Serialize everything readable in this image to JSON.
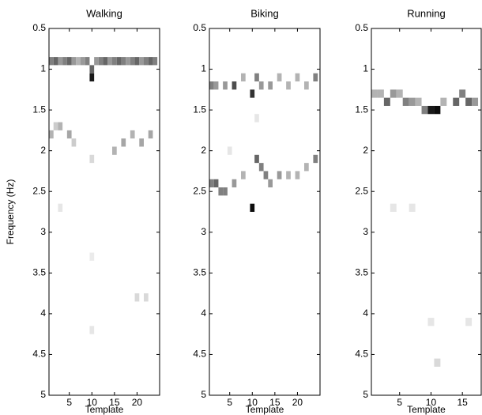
{
  "chart_data": [
    {
      "type": "heatmap",
      "title": "Walking",
      "xlabel": "Template",
      "ylabel": "Frequency (Hz)",
      "colormap": "gray_r",
      "x": [
        1,
        2,
        3,
        4,
        5,
        6,
        7,
        8,
        9,
        10,
        10,
        11,
        12,
        13,
        14,
        15,
        16,
        17,
        18,
        19,
        20,
        21,
        22,
        23,
        24,
        1,
        2,
        3,
        5,
        6,
        10,
        15,
        17,
        19,
        21,
        23,
        3,
        10,
        20,
        22,
        10
      ],
      "y": [
        0.9,
        0.9,
        0.9,
        0.9,
        0.9,
        0.9,
        0.9,
        0.9,
        0.9,
        1.1,
        1.0,
        0.9,
        0.9,
        0.9,
        0.9,
        0.9,
        0.9,
        0.9,
        0.9,
        0.9,
        0.9,
        0.9,
        0.9,
        0.9,
        0.9,
        1.8,
        1.7,
        1.7,
        1.8,
        1.9,
        2.1,
        2.0,
        1.9,
        1.8,
        1.9,
        1.8,
        2.7,
        3.3,
        3.8,
        3.8,
        4.2
      ],
      "values": [
        0.5,
        0.6,
        0.4,
        0.5,
        0.6,
        0.4,
        0.3,
        0.4,
        0.5,
        0.9,
        0.6,
        0.4,
        0.5,
        0.6,
        0.4,
        0.5,
        0.6,
        0.5,
        0.4,
        0.5,
        0.6,
        0.4,
        0.5,
        0.6,
        0.5,
        0.3,
        0.2,
        0.3,
        0.35,
        0.2,
        0.15,
        0.3,
        0.35,
        0.3,
        0.35,
        0.35,
        0.1,
        0.08,
        0.15,
        0.15,
        0.1
      ],
      "xlim": [
        0.5,
        25
      ],
      "ylim": [
        0.5,
        5
      ],
      "y_reversed": true,
      "xticks": [
        5,
        10,
        15,
        20
      ],
      "yticks": [
        0.5,
        1,
        1.5,
        2,
        2.5,
        3,
        3.5,
        4,
        4.5,
        5
      ]
    },
    {
      "type": "heatmap",
      "title": "Biking",
      "xlabel": "Template",
      "colormap": "gray_r",
      "x": [
        1,
        2,
        4,
        6,
        8,
        10,
        11,
        12,
        14,
        16,
        18,
        20,
        22,
        24,
        1,
        2,
        3,
        4,
        6,
        8,
        10,
        11,
        12,
        13,
        14,
        16,
        18,
        20,
        22,
        24,
        11,
        5
      ],
      "y": [
        1.2,
        1.2,
        1.2,
        1.2,
        1.1,
        1.3,
        1.1,
        1.2,
        1.2,
        1.1,
        1.2,
        1.1,
        1.2,
        1.1,
        2.4,
        2.4,
        2.5,
        2.5,
        2.4,
        2.3,
        2.7,
        2.1,
        2.2,
        2.3,
        2.4,
        2.3,
        2.3,
        2.3,
        2.2,
        2.1,
        1.6,
        2.0
      ],
      "values": [
        0.5,
        0.4,
        0.4,
        0.7,
        0.3,
        0.8,
        0.5,
        0.4,
        0.4,
        0.3,
        0.3,
        0.3,
        0.3,
        0.5,
        0.5,
        0.6,
        0.5,
        0.5,
        0.4,
        0.3,
        0.95,
        0.6,
        0.5,
        0.5,
        0.4,
        0.4,
        0.3,
        0.3,
        0.3,
        0.5,
        0.1,
        0.1
      ],
      "xlim": [
        0.5,
        25
      ],
      "ylim": [
        0.5,
        5
      ],
      "y_reversed": true,
      "xticks": [
        5,
        10,
        15,
        20
      ],
      "yticks": [
        0.5,
        1,
        1.5,
        2,
        2.5,
        3,
        3.5,
        4,
        4.5,
        5
      ]
    },
    {
      "type": "heatmap",
      "title": "Running",
      "xlabel": "Template",
      "colormap": "gray_r",
      "x": [
        1,
        2,
        3,
        4,
        5,
        6,
        7,
        8,
        9,
        10,
        11,
        12,
        14,
        15,
        16,
        17,
        4,
        7,
        10,
        11,
        16
      ],
      "y": [
        1.3,
        1.3,
        1.4,
        1.3,
        1.3,
        1.4,
        1.4,
        1.4,
        1.5,
        1.5,
        1.5,
        1.4,
        1.4,
        1.3,
        1.4,
        1.4,
        2.7,
        2.7,
        4.1,
        4.6,
        4.1
      ],
      "values": [
        0.3,
        0.3,
        0.6,
        0.4,
        0.3,
        0.5,
        0.4,
        0.3,
        0.5,
        0.9,
        0.95,
        0.3,
        0.6,
        0.5,
        0.6,
        0.4,
        0.1,
        0.1,
        0.1,
        0.15,
        0.1
      ],
      "xlim": [
        0.5,
        18
      ],
      "ylim": [
        0.5,
        5
      ],
      "y_reversed": true,
      "xticks": [
        5,
        10,
        15
      ],
      "yticks": [
        0.5,
        1,
        1.5,
        2,
        2.5,
        3,
        3.5,
        4,
        4.5,
        5
      ]
    }
  ]
}
